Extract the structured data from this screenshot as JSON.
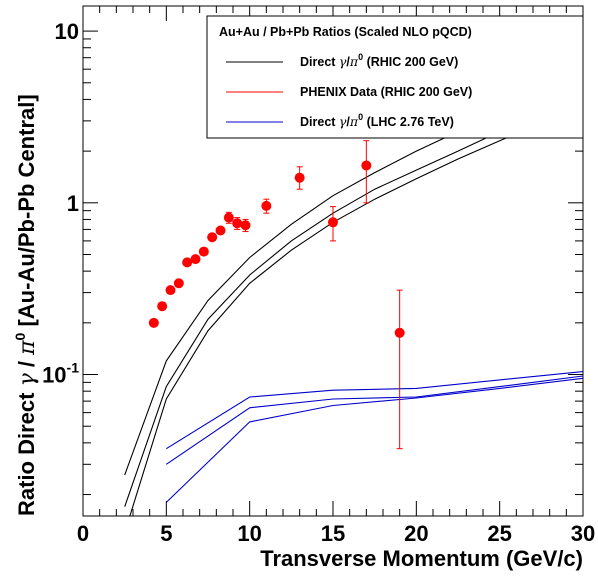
{
  "chart_data": {
    "type": "line",
    "xlabel": "Transverse Momentum (GeV/c)",
    "ylabel_parts": [
      "Ratio Direct ",
      "γ",
      " / ",
      "π",
      "0",
      " [Au-Au/Pb-Pb Central]"
    ],
    "xlim": [
      0,
      30
    ],
    "ylim": [
      0.015,
      14
    ],
    "log_y": true,
    "x_ticks": [
      0,
      5,
      10,
      15,
      20,
      25,
      30
    ],
    "y_ticks": [
      {
        "value": 0.1,
        "label_base": "10",
        "label_exp": "-1"
      },
      {
        "value": 1,
        "label_base": "1",
        "label_exp": ""
      },
      {
        "value": 10,
        "label_base": "10",
        "label_exp": ""
      }
    ],
    "legend": {
      "title": "Au+Au / Pb+Pb Ratios (Scaled NLO pQCD)",
      "entries": [
        {
          "parts": [
            "Direct ",
            "γ",
            "/",
            "π",
            "0",
            " (RHIC 200 GeV)"
          ],
          "color": "#000000"
        },
        {
          "parts": [
            "PHENIX Data (RHIC 200 GeV)",
            "",
            "",
            "",
            "",
            ""
          ],
          "color": "#ff0000"
        },
        {
          "parts": [
            "Direct ",
            "γ",
            "/",
            "π",
            "0",
            " (LHC 2.76 TeV)"
          ],
          "color": "#0000cc"
        }
      ]
    },
    "series": [
      {
        "color": "#000000",
        "x": [
          2.5,
          5,
          7.5,
          10,
          12.5,
          15,
          17.5,
          20,
          22.5,
          25,
          27.5,
          30
        ],
        "y": [
          0.026,
          0.12,
          0.27,
          0.48,
          0.75,
          1.1,
          1.5,
          2.0,
          2.6,
          3.3,
          4.2,
          5.2
        ]
      },
      {
        "color": "#000000",
        "x": [
          2.5,
          5,
          7.5,
          10,
          12.5,
          15,
          17.5,
          20,
          22.5,
          25,
          27.5,
          30
        ],
        "y": [
          0.017,
          0.085,
          0.21,
          0.38,
          0.6,
          0.87,
          1.2,
          1.55,
          2.0,
          2.6,
          3.3,
          4.1
        ]
      },
      {
        "color": "#000000",
        "x": [
          2.5,
          5,
          7.5,
          10,
          12.5,
          15,
          17.5,
          20,
          22.5,
          25,
          27.5,
          30
        ],
        "y": [
          0.012,
          0.072,
          0.18,
          0.34,
          0.53,
          0.77,
          1.05,
          1.38,
          1.8,
          2.3,
          2.9,
          3.6
        ]
      },
      {
        "color": "#0000cc",
        "x": [
          5,
          10,
          15,
          20,
          25,
          30
        ],
        "y": [
          0.037,
          0.074,
          0.081,
          0.083,
          0.093,
          0.104
        ]
      },
      {
        "color": "#0000cc",
        "x": [
          5,
          10,
          15,
          20,
          25,
          30
        ],
        "y": [
          0.03,
          0.064,
          0.072,
          0.074,
          0.085,
          0.098
        ]
      },
      {
        "color": "#0000cc",
        "x": [
          5,
          10,
          15,
          20,
          25,
          30
        ],
        "y": [
          0.018,
          0.053,
          0.066,
          0.073,
          0.083,
          0.095
        ]
      }
    ],
    "points": {
      "color": "#ff0000",
      "x": [
        4.25,
        4.75,
        5.25,
        5.75,
        6.25,
        6.75,
        7.25,
        7.75,
        8.25,
        8.75,
        9.25,
        9.75,
        11,
        13,
        15,
        17,
        19
      ],
      "y": [
        0.2,
        0.25,
        0.31,
        0.34,
        0.45,
        0.47,
        0.52,
        0.63,
        0.69,
        0.82,
        0.76,
        0.74,
        0.96,
        1.4,
        0.77,
        1.65,
        0.175
      ],
      "err_low": [
        0,
        0,
        0,
        0,
        0,
        0,
        0,
        0,
        0,
        0.06,
        0.06,
        0.06,
        0.09,
        0.2,
        0.17,
        0.65,
        0.138
      ],
      "err_high": [
        0,
        0,
        0,
        0,
        0,
        0,
        0,
        0,
        0,
        0.06,
        0.06,
        0.06,
        0.09,
        0.22,
        0.18,
        0.65,
        0.135
      ]
    }
  }
}
